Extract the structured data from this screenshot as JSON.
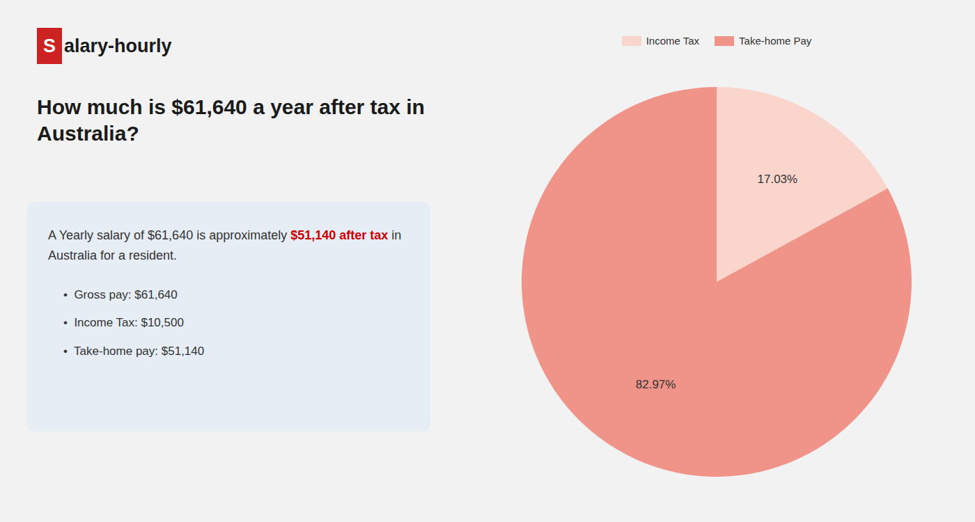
{
  "chart_data": {
    "type": "pie",
    "title": "How much is $61,640 a year after tax in Australia?",
    "annotations": [
      {
        "text": "S",
        "color": "#cc2222"
      },
      {
        "text": "alary-hourly"
      },
      {
        "text": "A Yearly salary of $61,640 is approximately "
      },
      {
        "text": "$51,140 after tax",
        "color": "#cc0000"
      },
      {
        "text": " in"
      },
      {
        "text": "Australia for a resident."
      },
      {
        "text": "•  Gross pay: $61,640"
      },
      {
        "text": "•  Income Tax: $10,500"
      },
      {
        "text": "•  Take-home pay: $51,140"
      }
    ],
    "categories": [
      "Income Tax",
      "Take-home Pay"
    ],
    "values": [
      17.03,
      82.97
    ],
    "value_labels": [
      "17.03%",
      "82.97%"
    ],
    "colors": [
      "#f9d5cc",
      "#f0948a"
    ],
    "data_labels": true,
    "legend": "top"
  }
}
